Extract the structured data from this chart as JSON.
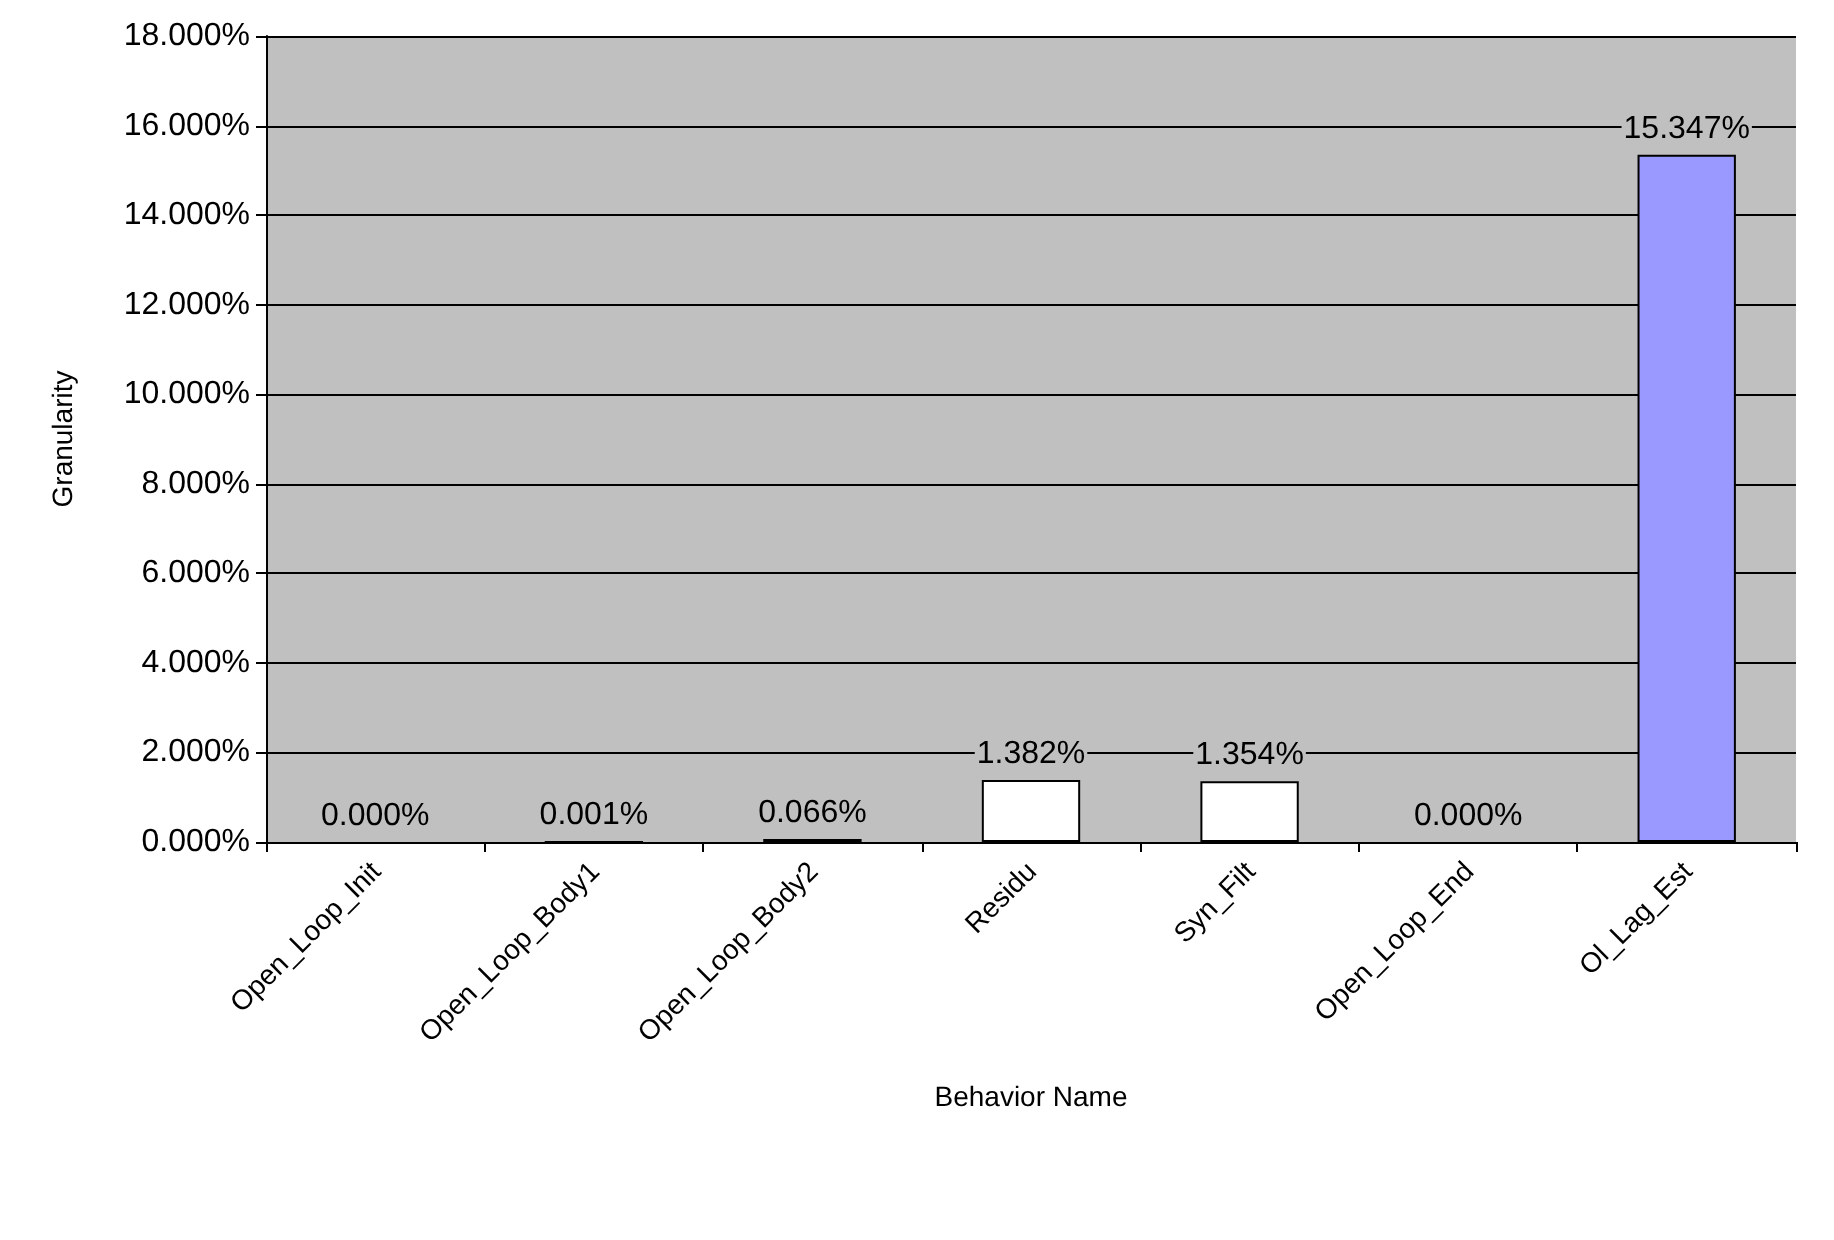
{
  "chart_data": {
    "type": "bar",
    "xlabel": "Behavior Name",
    "ylabel": "Granularity",
    "categories": [
      "Open_Loop_Init",
      "Open_Loop_Body1",
      "Open_Loop_Body2",
      "Residu",
      "Syn_Filt",
      "Open_Loop_End",
      "Ol_Lag_Est"
    ],
    "values": [
      0,
      0.001,
      0.066,
      1.382,
      1.354,
      0,
      15.347
    ],
    "colors": [
      "#ffffff",
      "#000000",
      "#000000",
      "#ffffff",
      "#ffffff",
      "#ffffff",
      "#9999ff"
    ],
    "value_labels": [
      "0.000%",
      "0.001%",
      "0.066%",
      "1.382%",
      "1.354%",
      "0.000%",
      "15.347%"
    ],
    "ylim": [
      0,
      18
    ],
    "yticks": [
      {
        "value": 0,
        "label": "0.000%"
      },
      {
        "value": 2,
        "label": "2.000%"
      },
      {
        "value": 4,
        "label": "4.000%"
      },
      {
        "value": 6,
        "label": "6.000%"
      },
      {
        "value": 8,
        "label": "8.000%"
      },
      {
        "value": 10,
        "label": "10.000%"
      },
      {
        "value": 12,
        "label": "12.000%"
      },
      {
        "value": 14,
        "label": "14.000%"
      },
      {
        "value": 16,
        "label": "16.000%"
      },
      {
        "value": 18,
        "label": "18.000%"
      }
    ],
    "grid": "y"
  }
}
